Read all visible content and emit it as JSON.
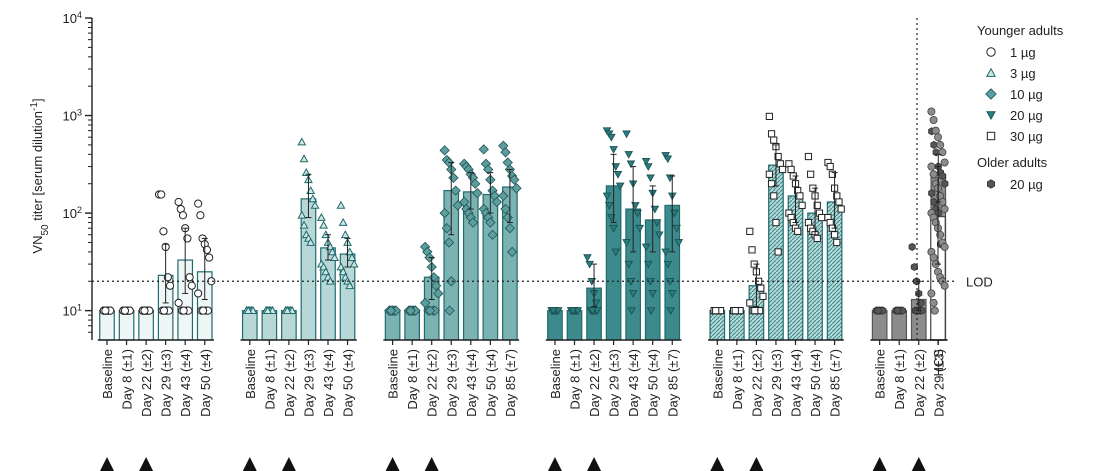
{
  "chart_data": {
    "type": "bar",
    "yscale": "log",
    "ylim": [
      5,
      10000
    ],
    "ylabel": {
      "prefix": "VN",
      "sub": "50",
      "mid": " titer [serum dilution",
      "sup": "-1",
      "suffix": "]"
    },
    "y_ticks": [
      {
        "value": 10,
        "base": "10",
        "exp": "1"
      },
      {
        "value": 100,
        "base": "10",
        "exp": "2"
      },
      {
        "value": 1000,
        "base": "10",
        "exp": "3"
      },
      {
        "value": 10000,
        "base": "10",
        "exp": "4"
      }
    ],
    "lod": {
      "value": 20,
      "label": "LOD"
    },
    "legend": {
      "groups": [
        {
          "title": "Younger adults",
          "entries": [
            {
              "label": "1 µg",
              "marker": "circle-open"
            },
            {
              "label": "3 µg",
              "marker": "triangle-up-open"
            },
            {
              "label": "10 µg",
              "marker": "diamond-filled"
            },
            {
              "label": "20 µg",
              "marker": "triangle-down-filled"
            },
            {
              "label": "30 µg",
              "marker": "square-open"
            }
          ]
        },
        {
          "title": "Older adults",
          "entries": [
            {
              "label": "20 µg",
              "marker": "hexagon-filled"
            }
          ]
        }
      ]
    },
    "groups": [
      {
        "name": "1 µg",
        "cohort": "younger",
        "marker": "circle-open",
        "fill": "#eef6f6",
        "stroke": "#1f6b6e",
        "pattern": "none",
        "bars": [
          {
            "label": "Baseline",
            "value": 10,
            "points": [
              10,
              10,
              10,
              10,
              10,
              10,
              10,
              10,
              10,
              10,
              10,
              10
            ]
          },
          {
            "label": "Day 8 (±1)",
            "value": 10,
            "points": [
              10,
              10,
              10,
              10,
              10,
              10,
              10,
              10,
              10,
              10,
              10,
              10
            ]
          },
          {
            "label": "Day 22 (±2)",
            "value": 10,
            "points": [
              10,
              10,
              10,
              10,
              10,
              10,
              10,
              10,
              10,
              10,
              10,
              10
            ]
          },
          {
            "label": "Day 29 (±3)",
            "value": 23,
            "err": [
              12,
              48
            ],
            "points": [
              155,
              155,
              65,
              45,
              22,
              18,
              10,
              10,
              10,
              10,
              10,
              10
            ]
          },
          {
            "label": "Day 43 (±4)",
            "value": 33,
            "err": [
              15,
              70
            ],
            "points": [
              130,
              110,
              95,
              70,
              55,
              22,
              18,
              12,
              10,
              10,
              10,
              10
            ]
          },
          {
            "label": "Day 50 (±4)",
            "value": 25,
            "err": [
              13,
              55
            ],
            "points": [
              125,
              95,
              55,
              48,
              42,
              35,
              20,
              15,
              10,
              10,
              10,
              10
            ]
          }
        ]
      },
      {
        "name": "3 µg",
        "cohort": "younger",
        "marker": "triangle-up-open",
        "fill": "#b8d8d8",
        "stroke": "#1f6b6e",
        "pattern": "none",
        "bars": [
          {
            "label": "Baseline",
            "value": 10,
            "points": [
              10,
              10,
              10,
              10,
              10,
              10,
              10,
              10,
              10,
              10,
              10,
              10
            ]
          },
          {
            "label": "Day 8 (±1)",
            "value": 10,
            "points": [
              10,
              10,
              10,
              10,
              10,
              10,
              10,
              10,
              10,
              10,
              10,
              10
            ]
          },
          {
            "label": "Day 22 (±2)",
            "value": 10,
            "points": [
              10,
              10,
              10,
              10,
              10,
              10,
              10,
              10,
              10,
              10,
              10,
              10
            ]
          },
          {
            "label": "Day 29 (±3)",
            "value": 140,
            "err": [
              90,
              250
            ],
            "points": [
              535,
              360,
              260,
              220,
              170,
              140,
              120,
              95,
              75,
              60,
              55,
              50
            ]
          },
          {
            "label": "Day 43 (±4)",
            "value": 44,
            "err": [
              33,
              60
            ],
            "points": [
              90,
              75,
              60,
              50,
              45,
              40,
              35,
              30,
              28,
              25,
              22,
              20
            ]
          },
          {
            "label": "Day 50 (±4)",
            "value": 38,
            "err": [
              28,
              55
            ],
            "points": [
              120,
              80,
              60,
              50,
              40,
              35,
              30,
              28,
              25,
              22,
              20,
              18
            ]
          }
        ]
      },
      {
        "name": "10 µg",
        "cohort": "younger",
        "marker": "diamond-filled",
        "fill": "#7bb3b3",
        "stroke": "#1f6b6e",
        "pattern": "none",
        "bars": [
          {
            "label": "Baseline",
            "value": 10,
            "points": [
              10,
              10,
              10,
              10,
              10,
              10,
              10,
              10,
              10,
              10,
              10,
              10
            ]
          },
          {
            "label": "Day 8 (±1)",
            "value": 10,
            "points": [
              10,
              10,
              10,
              10,
              10,
              10,
              10,
              10,
              10,
              10,
              10,
              10
            ]
          },
          {
            "label": "Day 22 (±2)",
            "value": 22,
            "err": [
              13,
              35
            ],
            "points": [
              45,
              40,
              35,
              28,
              22,
              18,
              15,
              12,
              10,
              10,
              10,
              10
            ]
          },
          {
            "label": "Day 29 (±3)",
            "value": 170,
            "err": [
              60,
              330
            ],
            "points": [
              440,
              350,
              330,
              280,
              230,
              170,
              120,
              100,
              70,
              50,
              20,
              10
            ]
          },
          {
            "label": "Day 43 (±4)",
            "value": 165,
            "err": [
              110,
              260
            ],
            "points": [
              320,
              300,
              280,
              250,
              230,
              200,
              160,
              130,
              110,
              100,
              90,
              80
            ]
          },
          {
            "label": "Day 50 (±4)",
            "value": 155,
            "err": [
              100,
              260
            ],
            "points": [
              450,
              320,
              280,
              220,
              170,
              150,
              130,
              110,
              100,
              90,
              80,
              60
            ]
          },
          {
            "label": "Day 85 (±7)",
            "value": 185,
            "err": [
              80,
              280
            ],
            "points": [
              490,
              420,
              330,
              280,
              240,
              220,
              180,
              150,
              110,
              90,
              70,
              40
            ]
          }
        ]
      },
      {
        "name": "20 µg",
        "cohort": "younger",
        "marker": "triangle-down-filled",
        "fill": "#3c8a8b",
        "stroke": "#1f6b6e",
        "pattern": "none",
        "bars": [
          {
            "label": "Baseline",
            "value": 10,
            "points": [
              10,
              10,
              10,
              10,
              10,
              10,
              10,
              10,
              10,
              10,
              10,
              10
            ]
          },
          {
            "label": "Day 8 (±1)",
            "value": 10,
            "points": [
              10,
              10,
              10,
              10,
              10,
              10,
              10,
              10,
              10,
              10,
              10,
              10
            ]
          },
          {
            "label": "Day 22 (±2)",
            "value": 17,
            "err": [
              11,
              30
            ],
            "points": [
              35,
              30,
              20,
              15,
              12,
              10,
              10,
              10,
              10,
              10,
              10,
              10
            ]
          },
          {
            "label": "Day 29 (±3)",
            "value": 190,
            "err": [
              80,
              400
            ],
            "points": [
              700,
              650,
              600,
              450,
              300,
              250,
              190,
              150,
              120,
              90,
              70,
              40
            ]
          },
          {
            "label": "Day 43 (±4)",
            "value": 110,
            "err": [
              40,
              300
            ],
            "points": [
              650,
              400,
              320,
              200,
              120,
              100,
              70,
              50,
              30,
              20,
              15,
              10
            ]
          },
          {
            "label": "Day 50 (±4)",
            "value": 85,
            "err": [
              40,
              190
            ],
            "points": [
              340,
              300,
              230,
              160,
              110,
              80,
              60,
              45,
              30,
              20,
              15,
              10
            ]
          },
          {
            "label": "Day 85 (±7)",
            "value": 120,
            "err": [
              40,
              240
            ],
            "points": [
              390,
              360,
              230,
              150,
              100,
              70,
              50,
              40,
              30,
              20,
              15,
              10
            ]
          }
        ]
      },
      {
        "name": "30 µg",
        "cohort": "younger",
        "marker": "square-open",
        "fill": "#b8d8d8",
        "stroke": "#1f6b6e",
        "pattern": "hatch",
        "bars": [
          {
            "label": "Baseline",
            "value": 10,
            "points": [
              10,
              10,
              10,
              10,
              10,
              10,
              10,
              10,
              10,
              10,
              10,
              10
            ]
          },
          {
            "label": "Day 8 (±1)",
            "value": 10,
            "points": [
              10,
              10,
              10,
              10,
              10,
              10,
              10,
              10,
              10,
              10,
              10,
              10
            ]
          },
          {
            "label": "Day 22 (±2)",
            "value": 18,
            "err": [
              11,
              30
            ],
            "points": [
              65,
              42,
              30,
              25,
              20,
              17,
              14,
              12,
              10,
              10,
              10,
              10
            ]
          },
          {
            "label": "Day 29 (±3)",
            "value": 310,
            "err": [
              190,
              500
            ],
            "points": [
              980,
              650,
              560,
              480,
              380,
              320,
              280,
              250,
              200,
              150,
              80,
              40
            ]
          },
          {
            "label": "Day 43 (±4)",
            "value": 150,
            "err": [
              80,
              240
            ],
            "points": [
              320,
              280,
              240,
              200,
              170,
              150,
              120,
              100,
              90,
              80,
              70,
              65
            ]
          },
          {
            "label": "Day 50 (±4)",
            "value": 100,
            "err": [
              60,
              180
            ],
            "points": [
              380,
              250,
              180,
              150,
              120,
              100,
              90,
              80,
              70,
              65,
              60,
              55
            ]
          },
          {
            "label": "Day 85 (±7)",
            "value": 130,
            "err": [
              70,
              260
            ],
            "points": [
              330,
              300,
              250,
              180,
              150,
              130,
              110,
              90,
              80,
              70,
              60,
              50
            ]
          }
        ]
      },
      {
        "name": "20 µg",
        "cohort": "older",
        "marker": "hexagon-filled",
        "fill": "#8c8c8c",
        "stroke": "#555555",
        "pattern": "none",
        "bars": [
          {
            "label": "Baseline",
            "value": 10,
            "points": [
              10,
              10,
              10,
              10,
              10,
              10,
              10,
              10,
              10,
              10,
              10,
              10
            ]
          },
          {
            "label": "Day 8 (±1)",
            "value": 10,
            "points": [
              10,
              10,
              10,
              10,
              10,
              10,
              10,
              10,
              10,
              10,
              10,
              10
            ]
          },
          {
            "label": "Day 22 (±2)",
            "value": 13,
            "err": [
              10,
              20
            ],
            "points": [
              45,
              28,
              20,
              15,
              12,
              10,
              10,
              10,
              10,
              10,
              10,
              10
            ]
          },
          {
            "label": "Day 29 (±3)",
            "value": 230,
            "err": [
              130,
              400
            ],
            "points": [
              690,
              500,
              420,
              300,
              260,
              240,
              200,
              160,
              130,
              110,
              100,
              48
            ]
          }
        ]
      },
      {
        "name": "HCS",
        "cohort": "hcs",
        "marker": "circle-filled-gray",
        "fill": "#ffffff",
        "stroke": "#444444",
        "pattern": "none",
        "bars": [
          {
            "label": "HCS",
            "value": 92,
            "err": [
              30,
              300
            ],
            "points": [
              1100,
              900,
              700,
              600,
              500,
              420,
              330,
              300,
              250,
              200,
              180,
              150,
              130,
              110,
              100,
              90,
              80,
              70,
              60,
              50,
              45,
              40,
              35,
              30,
              25,
              22,
              20,
              18,
              15,
              12,
              10
            ]
          }
        ]
      }
    ],
    "dose_markers": [
      {
        "group": 0,
        "bar": 0
      },
      {
        "group": 0,
        "bar": 2
      },
      {
        "group": 1,
        "bar": 0
      },
      {
        "group": 1,
        "bar": 2
      },
      {
        "group": 2,
        "bar": 0
      },
      {
        "group": 2,
        "bar": 2
      },
      {
        "group": 3,
        "bar": 0
      },
      {
        "group": 3,
        "bar": 2
      },
      {
        "group": 4,
        "bar": 0
      },
      {
        "group": 4,
        "bar": 2
      },
      {
        "group": 5,
        "bar": 0
      },
      {
        "group": 5,
        "bar": 2
      }
    ]
  }
}
